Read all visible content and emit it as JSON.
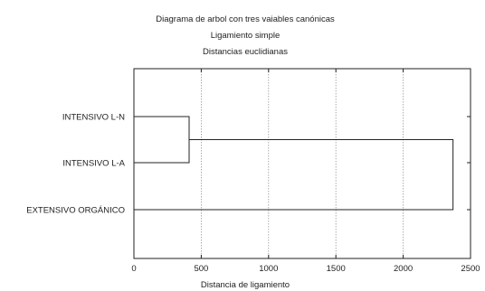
{
  "chart_data": {
    "type": "dendrogram",
    "title_lines": [
      "Diagrama de arbol con tres vaiables canónicas",
      "Ligamiento simple",
      "Distancias euclidianas"
    ],
    "xlabel": "Distancia de ligamiento",
    "xlim": [
      0,
      2500
    ],
    "xticks": [
      0,
      500,
      1000,
      1500,
      2000,
      2500
    ],
    "grid": true,
    "leaves": [
      "INTENSIVO L-N",
      "INTENSIVO L-A",
      "EXTENSIVO ORGÁNICO"
    ],
    "merges": [
      {
        "join": [
          "INTENSIVO L-N",
          "INTENSIVO L-A"
        ],
        "distance": 410
      },
      {
        "join": [
          "INTENSIVO L-N + INTENSIVO L-A",
          "EXTENSIVO ORGÁNICO"
        ],
        "distance": 2370
      }
    ],
    "line_color": "#222222",
    "grid_color": "#9a9a9a"
  }
}
